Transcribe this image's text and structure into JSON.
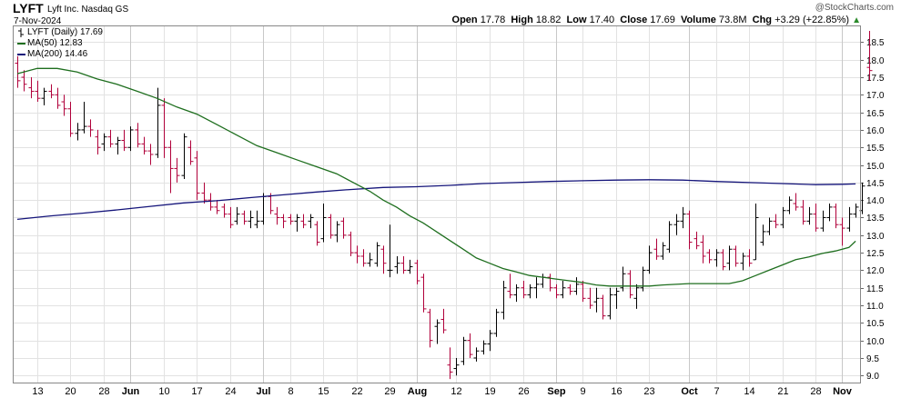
{
  "header": {
    "symbol": "LYFT",
    "company": "Lyft Inc.",
    "exchange": "Nasdaq GS",
    "date": "7-Nov-2024",
    "copyright": "@StockCharts.com",
    "open_label": "Open",
    "open": "17.78",
    "high_label": "High",
    "high": "18.82",
    "low_label": "Low",
    "low": "17.40",
    "close_label": "Close",
    "close": "17.69",
    "volume_label": "Volume",
    "volume": "73.8M",
    "chg_label": "Chg",
    "chg": "+3.29 (+22.85%)",
    "arrow": "▲"
  },
  "legend": {
    "price": "LYFT (Daily) 17.69",
    "ma50": "MA(50) 12.83",
    "ma200": "MA(200) 14.46"
  },
  "colors": {
    "up": "#000000",
    "down": "#b0003a",
    "ma50": "#1e6e1e",
    "ma200": "#14147a",
    "grid": "#e2e2e2",
    "arrow": "#2a8a2a"
  },
  "chart_data": {
    "type": "ohlc",
    "title": "LYFT (Daily)",
    "ylim": [
      8.8,
      18.95
    ],
    "yticks": [
      "9.0",
      "9.5",
      "10.0",
      "10.5",
      "11.0",
      "11.5",
      "12.0",
      "12.5",
      "13.0",
      "13.5",
      "14.0",
      "14.5",
      "15.0",
      "15.5",
      "16.0",
      "16.5",
      "17.0",
      "17.5",
      "18.0",
      "18.5"
    ],
    "xticks": [
      {
        "label": "13",
        "index": 3,
        "major": false
      },
      {
        "label": "20",
        "index": 8,
        "major": false
      },
      {
        "label": "28",
        "index": 13,
        "major": false
      },
      {
        "label": "Jun",
        "index": 17,
        "major": true
      },
      {
        "label": "10",
        "index": 22,
        "major": false
      },
      {
        "label": "17",
        "index": 27,
        "major": false
      },
      {
        "label": "24",
        "index": 32,
        "major": false
      },
      {
        "label": "Jul",
        "index": 37,
        "major": true
      },
      {
        "label": "8",
        "index": 41,
        "major": false
      },
      {
        "label": "15",
        "index": 46,
        "major": false
      },
      {
        "label": "22",
        "index": 51,
        "major": false
      },
      {
        "label": "29",
        "index": 56,
        "major": false
      },
      {
        "label": "Aug",
        "index": 60,
        "major": true
      },
      {
        "label": "12",
        "index": 66,
        "major": false
      },
      {
        "label": "19",
        "index": 71,
        "major": false
      },
      {
        "label": "26",
        "index": 76,
        "major": false
      },
      {
        "label": "Sep",
        "index": 81,
        "major": true
      },
      {
        "label": "9",
        "index": 85,
        "major": false
      },
      {
        "label": "16",
        "index": 90,
        "major": false
      },
      {
        "label": "23",
        "index": 95,
        "major": false
      },
      {
        "label": "Oct",
        "index": 101,
        "major": true
      },
      {
        "label": "7",
        "index": 105,
        "major": false
      },
      {
        "label": "14",
        "index": 110,
        "major": false
      },
      {
        "label": "21",
        "index": 115,
        "major": false
      },
      {
        "label": "28",
        "index": 120,
        "major": false
      },
      {
        "label": "Nov",
        "index": 124,
        "major": true
      }
    ],
    "ohlc": [
      {
        "o": 17.9,
        "h": 18.1,
        "l": 17.2,
        "c": 17.4
      },
      {
        "o": 17.5,
        "h": 17.7,
        "l": 17.1,
        "c": 17.3
      },
      {
        "o": 17.2,
        "h": 17.5,
        "l": 16.9,
        "c": 17.1
      },
      {
        "o": 17.1,
        "h": 17.4,
        "l": 16.8,
        "c": 16.9
      },
      {
        "o": 16.9,
        "h": 17.2,
        "l": 16.7,
        "c": 17.1
      },
      {
        "o": 17.1,
        "h": 17.3,
        "l": 16.9,
        "c": 17.0
      },
      {
        "o": 17.0,
        "h": 17.2,
        "l": 16.6,
        "c": 16.7
      },
      {
        "o": 16.8,
        "h": 17.0,
        "l": 16.4,
        "c": 16.6
      },
      {
        "o": 16.6,
        "h": 16.8,
        "l": 15.8,
        "c": 15.9
      },
      {
        "o": 15.9,
        "h": 16.2,
        "l": 15.7,
        "c": 16.0
      },
      {
        "o": 16.0,
        "h": 16.8,
        "l": 15.9,
        "c": 16.1
      },
      {
        "o": 16.1,
        "h": 16.3,
        "l": 15.8,
        "c": 16.0
      },
      {
        "o": 15.8,
        "h": 16.0,
        "l": 15.3,
        "c": 15.5
      },
      {
        "o": 15.6,
        "h": 15.9,
        "l": 15.4,
        "c": 15.8
      },
      {
        "o": 15.8,
        "h": 16.0,
        "l": 15.5,
        "c": 15.6
      },
      {
        "o": 15.6,
        "h": 15.8,
        "l": 15.3,
        "c": 15.7
      },
      {
        "o": 15.7,
        "h": 16.0,
        "l": 15.4,
        "c": 15.5
      },
      {
        "o": 15.5,
        "h": 16.1,
        "l": 15.4,
        "c": 16.0
      },
      {
        "o": 16.0,
        "h": 16.2,
        "l": 15.5,
        "c": 15.6
      },
      {
        "o": 15.6,
        "h": 15.8,
        "l": 15.3,
        "c": 15.4
      },
      {
        "o": 15.4,
        "h": 15.6,
        "l": 15.0,
        "c": 15.3
      },
      {
        "o": 15.3,
        "h": 17.2,
        "l": 15.2,
        "c": 16.7
      },
      {
        "o": 16.7,
        "h": 16.9,
        "l": 15.2,
        "c": 15.5
      },
      {
        "o": 15.5,
        "h": 15.7,
        "l": 14.2,
        "c": 14.9
      },
      {
        "o": 14.9,
        "h": 15.2,
        "l": 14.5,
        "c": 14.7
      },
      {
        "o": 14.7,
        "h": 15.9,
        "l": 14.6,
        "c": 15.8
      },
      {
        "o": 15.5,
        "h": 15.7,
        "l": 15.0,
        "c": 15.1
      },
      {
        "o": 15.2,
        "h": 15.4,
        "l": 14.0,
        "c": 14.2
      },
      {
        "o": 14.2,
        "h": 14.5,
        "l": 13.9,
        "c": 14.0
      },
      {
        "o": 14.0,
        "h": 14.2,
        "l": 13.7,
        "c": 13.8
      },
      {
        "o": 13.8,
        "h": 14.0,
        "l": 13.6,
        "c": 13.7
      },
      {
        "o": 13.8,
        "h": 13.9,
        "l": 13.5,
        "c": 13.6
      },
      {
        "o": 13.6,
        "h": 13.8,
        "l": 13.2,
        "c": 13.3
      },
      {
        "o": 13.4,
        "h": 13.8,
        "l": 13.3,
        "c": 13.6
      },
      {
        "o": 13.6,
        "h": 13.7,
        "l": 13.3,
        "c": 13.4
      },
      {
        "o": 13.4,
        "h": 13.7,
        "l": 13.2,
        "c": 13.5
      },
      {
        "o": 13.3,
        "h": 13.7,
        "l": 13.2,
        "c": 13.4
      },
      {
        "o": 13.4,
        "h": 14.2,
        "l": 13.3,
        "c": 14.1
      },
      {
        "o": 14.1,
        "h": 14.2,
        "l": 13.6,
        "c": 13.7
      },
      {
        "o": 13.6,
        "h": 13.8,
        "l": 13.3,
        "c": 13.5
      },
      {
        "o": 13.5,
        "h": 13.6,
        "l": 13.2,
        "c": 13.4
      },
      {
        "o": 13.5,
        "h": 13.6,
        "l": 13.3,
        "c": 13.4
      },
      {
        "o": 13.4,
        "h": 13.6,
        "l": 13.1,
        "c": 13.5
      },
      {
        "o": 13.4,
        "h": 13.6,
        "l": 13.2,
        "c": 13.3
      },
      {
        "o": 13.4,
        "h": 13.6,
        "l": 13.2,
        "c": 13.5
      },
      {
        "o": 13.3,
        "h": 13.4,
        "l": 12.7,
        "c": 12.8
      },
      {
        "o": 12.9,
        "h": 13.9,
        "l": 12.8,
        "c": 13.5
      },
      {
        "o": 13.5,
        "h": 13.6,
        "l": 12.9,
        "c": 13.0
      },
      {
        "o": 13.0,
        "h": 13.4,
        "l": 12.8,
        "c": 13.3
      },
      {
        "o": 13.4,
        "h": 13.5,
        "l": 12.9,
        "c": 13.0
      },
      {
        "o": 13.0,
        "h": 13.1,
        "l": 12.4,
        "c": 12.5
      },
      {
        "o": 12.5,
        "h": 12.7,
        "l": 12.2,
        "c": 12.4
      },
      {
        "o": 12.4,
        "h": 12.6,
        "l": 12.1,
        "c": 12.2
      },
      {
        "o": 12.2,
        "h": 12.5,
        "l": 12.1,
        "c": 12.3
      },
      {
        "o": 12.2,
        "h": 12.8,
        "l": 12.1,
        "c": 12.7
      },
      {
        "o": 12.6,
        "h": 12.7,
        "l": 11.9,
        "c": 12.2
      },
      {
        "o": 12.0,
        "h": 13.3,
        "l": 11.8,
        "c": 12.0
      },
      {
        "o": 12.1,
        "h": 12.4,
        "l": 11.9,
        "c": 12.2
      },
      {
        "o": 12.2,
        "h": 12.4,
        "l": 11.9,
        "c": 12.0
      },
      {
        "o": 12.0,
        "h": 12.3,
        "l": 11.9,
        "c": 12.1
      },
      {
        "o": 12.2,
        "h": 12.3,
        "l": 11.6,
        "c": 11.7
      },
      {
        "o": 11.8,
        "h": 11.9,
        "l": 10.8,
        "c": 10.9
      },
      {
        "o": 10.8,
        "h": 10.9,
        "l": 9.8,
        "c": 10.0
      },
      {
        "o": 10.4,
        "h": 10.6,
        "l": 9.9,
        "c": 10.5
      },
      {
        "o": 10.6,
        "h": 10.9,
        "l": 10.2,
        "c": 10.3
      },
      {
        "o": 9.3,
        "h": 9.8,
        "l": 8.9,
        "c": 9.1
      },
      {
        "o": 9.2,
        "h": 9.5,
        "l": 9.0,
        "c": 9.3
      },
      {
        "o": 9.4,
        "h": 10.1,
        "l": 9.3,
        "c": 10.0
      },
      {
        "o": 10.0,
        "h": 10.2,
        "l": 9.5,
        "c": 9.6
      },
      {
        "o": 9.5,
        "h": 9.8,
        "l": 9.4,
        "c": 9.7
      },
      {
        "o": 9.7,
        "h": 10.0,
        "l": 9.6,
        "c": 9.9
      },
      {
        "o": 9.9,
        "h": 10.3,
        "l": 9.7,
        "c": 10.2
      },
      {
        "o": 10.2,
        "h": 10.9,
        "l": 10.1,
        "c": 10.8
      },
      {
        "o": 10.8,
        "h": 11.7,
        "l": 10.6,
        "c": 11.5
      },
      {
        "o": 11.4,
        "h": 11.9,
        "l": 11.2,
        "c": 11.3
      },
      {
        "o": 11.3,
        "h": 11.6,
        "l": 11.1,
        "c": 11.5
      },
      {
        "o": 11.5,
        "h": 11.7,
        "l": 11.2,
        "c": 11.3
      },
      {
        "o": 11.3,
        "h": 11.6,
        "l": 11.2,
        "c": 11.5
      },
      {
        "o": 11.5,
        "h": 11.8,
        "l": 11.2,
        "c": 11.6
      },
      {
        "o": 11.6,
        "h": 11.9,
        "l": 11.5,
        "c": 11.8
      },
      {
        "o": 11.8,
        "h": 11.9,
        "l": 11.4,
        "c": 11.5
      },
      {
        "o": 11.5,
        "h": 11.6,
        "l": 11.2,
        "c": 11.3
      },
      {
        "o": 11.3,
        "h": 11.7,
        "l": 11.2,
        "c": 11.5
      },
      {
        "o": 11.5,
        "h": 11.6,
        "l": 11.3,
        "c": 11.4
      },
      {
        "o": 11.4,
        "h": 11.8,
        "l": 11.3,
        "c": 11.6
      },
      {
        "o": 11.6,
        "h": 11.7,
        "l": 11.1,
        "c": 11.2
      },
      {
        "o": 11.2,
        "h": 11.5,
        "l": 10.9,
        "c": 11.0
      },
      {
        "o": 11.1,
        "h": 11.5,
        "l": 10.8,
        "c": 11.2
      },
      {
        "o": 11.2,
        "h": 11.3,
        "l": 10.6,
        "c": 10.7
      },
      {
        "o": 10.7,
        "h": 11.5,
        "l": 10.6,
        "c": 11.3
      },
      {
        "o": 11.3,
        "h": 11.5,
        "l": 10.9,
        "c": 11.4
      },
      {
        "o": 11.5,
        "h": 12.1,
        "l": 11.4,
        "c": 11.9
      },
      {
        "o": 11.9,
        "h": 12.0,
        "l": 11.2,
        "c": 11.3
      },
      {
        "o": 11.2,
        "h": 11.6,
        "l": 10.9,
        "c": 11.5
      },
      {
        "o": 11.5,
        "h": 12.1,
        "l": 11.4,
        "c": 12.0
      },
      {
        "o": 12.0,
        "h": 12.7,
        "l": 11.9,
        "c": 12.5
      },
      {
        "o": 12.6,
        "h": 12.9,
        "l": 12.3,
        "c": 12.4
      },
      {
        "o": 12.4,
        "h": 12.8,
        "l": 12.3,
        "c": 12.7
      },
      {
        "o": 12.6,
        "h": 13.4,
        "l": 12.5,
        "c": 13.3
      },
      {
        "o": 13.3,
        "h": 13.6,
        "l": 13.0,
        "c": 13.4
      },
      {
        "o": 13.4,
        "h": 13.8,
        "l": 13.2,
        "c": 13.6
      },
      {
        "o": 13.6,
        "h": 13.7,
        "l": 12.6,
        "c": 12.8
      },
      {
        "o": 12.9,
        "h": 13.1,
        "l": 12.6,
        "c": 12.7
      },
      {
        "o": 12.8,
        "h": 13.0,
        "l": 12.2,
        "c": 12.4
      },
      {
        "o": 12.5,
        "h": 12.6,
        "l": 12.2,
        "c": 12.3
      },
      {
        "o": 12.3,
        "h": 12.6,
        "l": 12.1,
        "c": 12.5
      },
      {
        "o": 12.5,
        "h": 12.6,
        "l": 12.0,
        "c": 12.1
      },
      {
        "o": 12.2,
        "h": 12.7,
        "l": 12.0,
        "c": 12.6
      },
      {
        "o": 12.6,
        "h": 12.7,
        "l": 12.1,
        "c": 12.2
      },
      {
        "o": 12.2,
        "h": 12.5,
        "l": 12.0,
        "c": 12.4
      },
      {
        "o": 12.4,
        "h": 12.6,
        "l": 12.1,
        "c": 12.2
      },
      {
        "o": 12.3,
        "h": 13.9,
        "l": 12.3,
        "c": 13.5
      },
      {
        "o": 12.8,
        "h": 13.3,
        "l": 12.7,
        "c": 13.1
      },
      {
        "o": 13.1,
        "h": 13.5,
        "l": 13.0,
        "c": 13.4
      },
      {
        "o": 13.4,
        "h": 13.6,
        "l": 13.2,
        "c": 13.3
      },
      {
        "o": 13.3,
        "h": 13.8,
        "l": 13.2,
        "c": 13.7
      },
      {
        "o": 13.7,
        "h": 14.1,
        "l": 13.6,
        "c": 14.0
      },
      {
        "o": 13.9,
        "h": 14.2,
        "l": 13.7,
        "c": 13.8
      },
      {
        "o": 13.8,
        "h": 14.0,
        "l": 13.3,
        "c": 13.4
      },
      {
        "o": 13.4,
        "h": 13.8,
        "l": 13.3,
        "c": 13.6
      },
      {
        "o": 13.6,
        "h": 13.9,
        "l": 13.1,
        "c": 13.2
      },
      {
        "o": 13.2,
        "h": 13.7,
        "l": 13.1,
        "c": 13.5
      },
      {
        "o": 13.5,
        "h": 13.9,
        "l": 13.4,
        "c": 13.8
      },
      {
        "o": 13.8,
        "h": 13.9,
        "l": 13.2,
        "c": 13.3
      },
      {
        "o": 13.3,
        "h": 13.5,
        "l": 12.7,
        "c": 13.2
      },
      {
        "o": 13.2,
        "h": 13.8,
        "l": 13.1,
        "c": 13.6
      },
      {
        "o": 13.6,
        "h": 13.9,
        "l": 13.5,
        "c": 13.8
      },
      {
        "o": 13.7,
        "h": 14.5,
        "l": 13.6,
        "c": 14.4
      },
      {
        "o": 17.78,
        "h": 18.82,
        "l": 17.4,
        "c": 17.69
      }
    ],
    "ma50": [
      [
        0,
        17.6
      ],
      [
        3,
        17.75
      ],
      [
        6,
        17.75
      ],
      [
        9,
        17.65
      ],
      [
        12,
        17.45
      ],
      [
        15,
        17.3
      ],
      [
        18,
        17.1
      ],
      [
        21,
        16.9
      ],
      [
        24,
        16.65
      ],
      [
        27,
        16.45
      ],
      [
        30,
        16.15
      ],
      [
        33,
        15.85
      ],
      [
        36,
        15.55
      ],
      [
        39,
        15.35
      ],
      [
        42,
        15.15
      ],
      [
        45,
        14.95
      ],
      [
        48,
        14.75
      ],
      [
        51,
        14.45
      ],
      [
        53,
        14.25
      ],
      [
        55,
        14.0
      ],
      [
        57,
        13.8
      ],
      [
        59,
        13.55
      ],
      [
        61,
        13.35
      ],
      [
        63,
        13.1
      ],
      [
        65,
        12.85
      ],
      [
        67,
        12.6
      ],
      [
        69,
        12.35
      ],
      [
        71,
        12.2
      ],
      [
        73,
        12.05
      ],
      [
        75,
        11.95
      ],
      [
        77,
        11.85
      ],
      [
        79,
        11.8
      ],
      [
        81,
        11.75
      ],
      [
        83,
        11.7
      ],
      [
        85,
        11.65
      ],
      [
        87,
        11.58
      ],
      [
        89,
        11.55
      ],
      [
        91,
        11.55
      ],
      [
        93,
        11.55
      ],
      [
        95,
        11.55
      ],
      [
        97,
        11.58
      ],
      [
        99,
        11.6
      ],
      [
        101,
        11.62
      ],
      [
        103,
        11.62
      ],
      [
        105,
        11.62
      ],
      [
        107,
        11.62
      ],
      [
        109,
        11.7
      ],
      [
        111,
        11.85
      ],
      [
        113,
        12.0
      ],
      [
        115,
        12.15
      ],
      [
        117,
        12.3
      ],
      [
        119,
        12.38
      ],
      [
        121,
        12.48
      ],
      [
        123,
        12.55
      ],
      [
        125,
        12.65
      ],
      [
        126,
        12.83
      ]
    ],
    "ma200": [
      [
        0,
        13.45
      ],
      [
        5,
        13.55
      ],
      [
        10,
        13.63
      ],
      [
        15,
        13.72
      ],
      [
        20,
        13.82
      ],
      [
        25,
        13.92
      ],
      [
        30,
        13.98
      ],
      [
        35,
        14.07
      ],
      [
        40,
        14.15
      ],
      [
        45,
        14.23
      ],
      [
        50,
        14.3
      ],
      [
        55,
        14.36
      ],
      [
        60,
        14.38
      ],
      [
        65,
        14.42
      ],
      [
        70,
        14.47
      ],
      [
        75,
        14.5
      ],
      [
        80,
        14.53
      ],
      [
        85,
        14.55
      ],
      [
        90,
        14.57
      ],
      [
        95,
        14.58
      ],
      [
        100,
        14.57
      ],
      [
        105,
        14.53
      ],
      [
        110,
        14.5
      ],
      [
        115,
        14.47
      ],
      [
        120,
        14.44
      ],
      [
        124,
        14.45
      ],
      [
        126,
        14.46
      ]
    ]
  }
}
